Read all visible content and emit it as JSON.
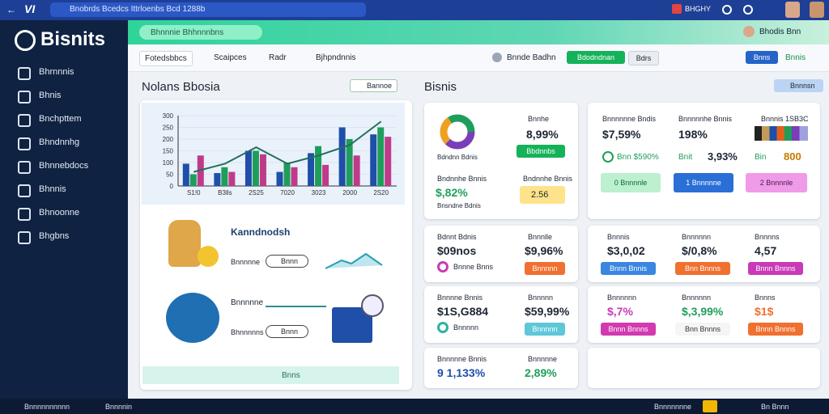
{
  "topbar": {
    "logo": "VI",
    "search": "Bnobrds Bcedcs Ittrloenbs Bcd 1288b",
    "badge": "BHGHY"
  },
  "sidebar": {
    "brand": "Bisnits",
    "menu": [
      "Bhrnnnis",
      "Bhnis",
      "Bnchpttem",
      "Bhndnnhg",
      "Bhnnebdocs",
      "Bhnnis",
      "Bhnoonne",
      "Bhgbns"
    ]
  },
  "header": {
    "pill": "Bhnnnie Bhhnnnbns",
    "user": "Bhodis Bnn"
  },
  "toolbar": {
    "tabs": [
      "Fotedsbbcs",
      "Scaipces",
      "Radr",
      "Bjhpndnnis"
    ],
    "status": "Bnnde Badhn",
    "primary": "Bdodndnan",
    "secondary": "Bdrs",
    "right": [
      "Bnns",
      "Bnnis"
    ]
  },
  "left_panel": {
    "title": "Nolans Bbosia",
    "dropdown": "Bannoe",
    "chart_data": {
      "type": "bar",
      "categories": [
        "S1!0",
        "B3lls",
        "2S25",
        "7020",
        "3023",
        "2000",
        "2S20"
      ],
      "series": [
        {
          "name": "A",
          "color": "#1f4fa8",
          "values": [
            95,
            55,
            150,
            60,
            140,
            250,
            220
          ]
        },
        {
          "name": "B",
          "color": "#1e9e5a",
          "values": [
            50,
            80,
            150,
            100,
            170,
            200,
            250
          ]
        },
        {
          "name": "C",
          "color": "#c03a8a",
          "values": [
            130,
            60,
            135,
            80,
            90,
            130,
            210
          ]
        },
        {
          "name": "D",
          "type": "line",
          "color": "#1f6f5a",
          "values": [
            60,
            95,
            165,
            95,
            130,
            175,
            275
          ]
        }
      ],
      "ylim": [
        0,
        300
      ],
      "yticks": [
        0,
        50,
        100,
        150,
        200,
        250,
        300
      ]
    },
    "feature_title": "Kanndnodsh",
    "rows": [
      {
        "label": "Bnnnnne",
        "pill": "Bnnn"
      },
      {
        "label": "Bhnnnnns",
        "pill": "Bnnn"
      }
    ],
    "arrow_label": "Bnnnnne",
    "footer": "Bnns"
  },
  "right_panel": {
    "title": "Bisnis",
    "dropdown": "Bnnnsn",
    "donut_card": {
      "donut_label": "Bdndnn Bdnis",
      "head": "Bnnhe",
      "value": "8,99%",
      "button": "Bbdnnbs",
      "label2": "Bndnnhe Bnnis",
      "value2": "$,82%",
      "value3": "2.56",
      "foot": "Bnsndne Bdnis"
    },
    "summary_card": {
      "heads": [
        "Bnnnnnne Bndis",
        "Bnnnnnhe Bnnis",
        "Bnnnis 1SB3C"
      ],
      "values": [
        "$7,59%",
        "198%"
      ],
      "row": [
        "Bnn $590%",
        "Bnit",
        "3,93%",
        "Bin",
        "800"
      ],
      "buttons": [
        "0 Bnnnnle",
        "1 Bnnnnne",
        "2 Bnnnnle"
      ]
    },
    "rows": [
      {
        "left": {
          "head": [
            "Bdnnt Bdnis",
            "Bnnnlle"
          ],
          "value": [
            "$09nos",
            "$9,96%"
          ],
          "label": "Bnnne Bnns",
          "button": "Bnnnnn"
        },
        "right": {
          "heads": [
            "Bnnnis",
            "Bnnnnnn",
            "Bnnnns"
          ],
          "values": [
            "$3,0,02",
            "$/0,8%",
            "4,57"
          ],
          "buttons": [
            "Bnnn Bnnis",
            "Bnn Bnnns",
            "Bnnn Bnnns"
          ]
        }
      },
      {
        "left": {
          "head": [
            "Bnnnne Bnnis",
            "Bnnnnn"
          ],
          "value": [
            "$1S,G884",
            "$59,99%"
          ],
          "label": "Bnnnnn",
          "button": "Bnnnnn"
        },
        "right": {
          "heads": [
            "Bnnnnnn",
            "Bnnnnnn",
            "Bnnns"
          ],
          "values": [
            "$,7%",
            "$,3,99%",
            "$1$"
          ],
          "buttons": [
            "Bnnn Bnnns",
            "Bnn Bnnns",
            "Bnnn Bnnns"
          ]
        }
      },
      {
        "left": {
          "head": [
            "Bnnnnne Bnnis",
            "Bnnnnne"
          ],
          "value": [
            "9 1,133%",
            "2,89%"
          ]
        }
      }
    ]
  },
  "statusbar": {
    "left": [
      "Bnnnnnnnnnn",
      "Bnnnnin"
    ],
    "right": [
      "Bnnnnnnne",
      "Bn Bnnn"
    ]
  }
}
